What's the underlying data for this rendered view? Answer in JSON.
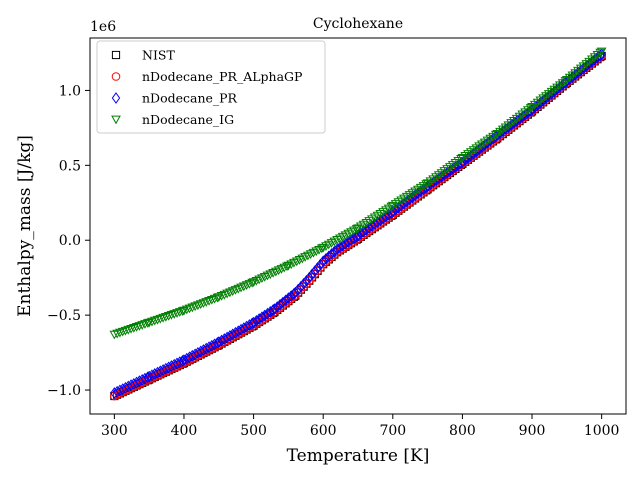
{
  "chart_data": {
    "type": "scatter",
    "title": "Cyclohexane",
    "xlabel": "Temperature [K]",
    "ylabel": "Enthalpy_mass [J/kg]",
    "offset_label": "1e6",
    "xlim": [
      265,
      1035
    ],
    "ylim": [
      -1.16,
      1.35
    ],
    "xticks": [
      300,
      400,
      500,
      600,
      700,
      800,
      900,
      1000
    ],
    "yticks": [
      -1.0,
      -0.5,
      0.0,
      0.5,
      1.0
    ],
    "ytick_labels": [
      "−1.0",
      "−0.5",
      "0.0",
      "0.5",
      "1.0"
    ],
    "grid": false,
    "legend_position": "top-left",
    "series": [
      {
        "name": "NIST",
        "marker": "square",
        "color": "#000000",
        "x": [
          300,
          350,
          400,
          450,
          500,
          530,
          560,
          580,
          600,
          620,
          650,
          700,
          750,
          800,
          850,
          900,
          950,
          1000
        ],
        "y": [
          -1.04,
          -0.93,
          -0.82,
          -0.7,
          -0.57,
          -0.48,
          -0.37,
          -0.27,
          -0.16,
          -0.08,
          0.01,
          0.17,
          0.34,
          0.51,
          0.68,
          0.86,
          1.05,
          1.23
        ]
      },
      {
        "name": "nDodecane_PR_ALphaGP",
        "marker": "circle",
        "color": "#ff0000",
        "x": [
          300,
          350,
          400,
          450,
          500,
          530,
          560,
          580,
          600,
          620,
          650,
          700,
          750,
          800,
          850,
          900,
          950,
          1000
        ],
        "y": [
          -1.04,
          -0.93,
          -0.82,
          -0.7,
          -0.57,
          -0.48,
          -0.37,
          -0.27,
          -0.16,
          -0.08,
          0.01,
          0.17,
          0.34,
          0.51,
          0.68,
          0.86,
          1.05,
          1.23
        ]
      },
      {
        "name": "nDodecane_PR",
        "marker": "diamond",
        "color": "#0000ff",
        "x": [
          300,
          350,
          400,
          450,
          500,
          530,
          560,
          580,
          600,
          620,
          650,
          700,
          750,
          800,
          850,
          900,
          950,
          1000
        ],
        "y": [
          -1.02,
          -0.91,
          -0.8,
          -0.68,
          -0.55,
          -0.46,
          -0.35,
          -0.25,
          -0.14,
          -0.06,
          0.03,
          0.19,
          0.36,
          0.52,
          0.7,
          0.87,
          1.06,
          1.24
        ]
      },
      {
        "name": "nDodecane_IG",
        "marker": "triangle-down",
        "color": "#008000",
        "x": [
          300,
          350,
          400,
          450,
          500,
          550,
          600,
          650,
          700,
          750,
          800,
          850,
          900,
          950,
          1000
        ],
        "y": [
          -0.63,
          -0.55,
          -0.47,
          -0.38,
          -0.28,
          -0.17,
          -0.05,
          0.08,
          0.23,
          0.38,
          0.55,
          0.71,
          0.89,
          1.07,
          1.26
        ]
      }
    ]
  }
}
